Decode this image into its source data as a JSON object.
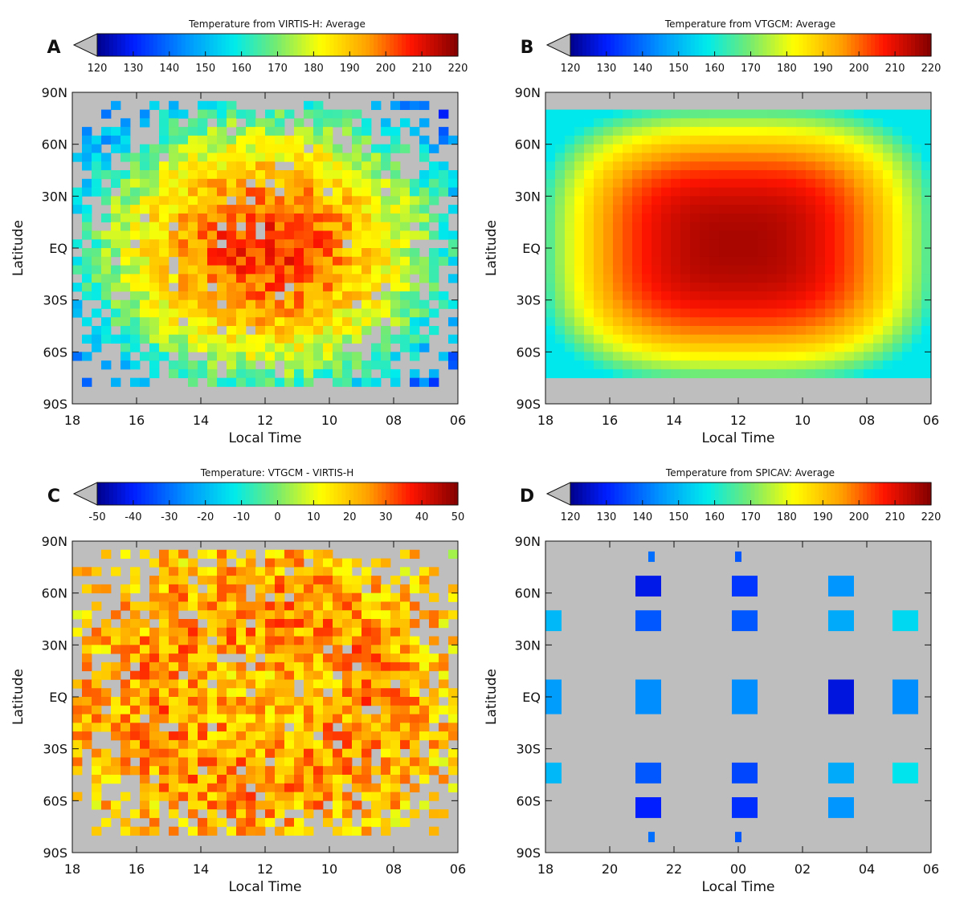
{
  "figure": {
    "panels": [
      {
        "letter": "A",
        "title": "Temperature from VIRTIS-H: Average",
        "xlabel": "Local Time",
        "ylabel": "Latitude",
        "colorbar_ticks": [
          "120",
          "130",
          "140",
          "150",
          "160",
          "170",
          "180",
          "190",
          "200",
          "210",
          "220"
        ],
        "x_ticks": [
          "18",
          "16",
          "14",
          "12",
          "10",
          "08",
          "06"
        ]
      },
      {
        "letter": "B",
        "title": "Temperature from VTGCM: Average",
        "xlabel": "Local Time",
        "ylabel": "Latitude",
        "colorbar_ticks": [
          "120",
          "130",
          "140",
          "150",
          "160",
          "170",
          "180",
          "190",
          "200",
          "210",
          "220"
        ],
        "x_ticks": [
          "18",
          "16",
          "14",
          "12",
          "10",
          "08",
          "06"
        ]
      },
      {
        "letter": "C",
        "title": "Temperature: VTGCM - VIRTIS-H",
        "xlabel": "Local Time",
        "ylabel": "Latitude",
        "colorbar_ticks": [
          "-50",
          "-40",
          "-30",
          "-20",
          "-10",
          "0",
          "10",
          "20",
          "30",
          "40",
          "50"
        ],
        "x_ticks": [
          "18",
          "16",
          "14",
          "12",
          "10",
          "08",
          "06"
        ]
      },
      {
        "letter": "D",
        "title": "Temperature from SPICAV: Average",
        "xlabel": "Local Time",
        "ylabel": "Latitude",
        "colorbar_ticks": [
          "120",
          "130",
          "140",
          "150",
          "160",
          "170",
          "180",
          "190",
          "200",
          "210",
          "220"
        ],
        "x_ticks": [
          "18",
          "20",
          "22",
          "00",
          "02",
          "04",
          "06"
        ]
      }
    ],
    "y_ticks": [
      "90N",
      "60N",
      "30N",
      "EQ",
      "30S",
      "60S",
      "90S"
    ]
  },
  "chart_data": [
    {
      "type": "heatmap",
      "panel": "A",
      "title": "Temperature from VIRTIS-H: Average",
      "xlabel": "Local Time",
      "ylabel": "Latitude",
      "x_range_hours": [
        18,
        6
      ],
      "y_range_deg": [
        90,
        -90
      ],
      "colorbar_range": [
        120,
        220
      ],
      "colormap": "rainbow",
      "missing_color": "#bebebe",
      "description_values": {
        "max_near_noon_equator": 205,
        "min_high_latitude_terminator": 140
      }
    },
    {
      "type": "heatmap",
      "panel": "B",
      "title": "Temperature from VTGCM: Average",
      "xlabel": "Local Time",
      "ylabel": "Latitude",
      "x_range_hours": [
        18,
        6
      ],
      "y_range_deg": [
        90,
        -90
      ],
      "colorbar_range": [
        120,
        220
      ],
      "colormap": "rainbow",
      "missing_color": "#bebebe",
      "lat_extent_deg": [
        -75,
        80
      ],
      "description_values": {
        "peak_subsolar": 215,
        "edge": 165
      }
    },
    {
      "type": "heatmap",
      "panel": "C",
      "title": "Temperature: VTGCM - VIRTIS-H",
      "xlabel": "Local Time",
      "ylabel": "Latitude",
      "x_range_hours": [
        18,
        6
      ],
      "y_range_deg": [
        90,
        -90
      ],
      "colorbar_range": [
        -50,
        50
      ],
      "colormap": "rainbow",
      "missing_color": "#bebebe"
    },
    {
      "type": "heatmap",
      "panel": "D",
      "title": "Temperature from SPICAV: Average",
      "xlabel": "Local Time",
      "ylabel": "Latitude",
      "x_range_hours": [
        18,
        30
      ],
      "y_range_deg": [
        90,
        -90
      ],
      "colorbar_range": [
        120,
        220
      ],
      "colormap": "rainbow",
      "missing_color": "#bebebe",
      "blocks": [
        {
          "lt": [
            21.2,
            21.4
          ],
          "lat": [
            78,
            84
          ],
          "value": 140
        },
        {
          "lt": [
            20.8,
            21.6
          ],
          "lat": [
            58,
            70
          ],
          "value": 128
        },
        {
          "lt": [
            20.8,
            21.6
          ],
          "lat": [
            38,
            50
          ],
          "value": 137
        },
        {
          "lt": [
            20.8,
            21.6
          ],
          "lat": [
            -10,
            10
          ],
          "value": 144
        },
        {
          "lt": [
            20.8,
            21.6
          ],
          "lat": [
            -50,
            -38
          ],
          "value": 137
        },
        {
          "lt": [
            20.8,
            21.6
          ],
          "lat": [
            -70,
            -58
          ],
          "value": 130
        },
        {
          "lt": [
            21.2,
            21.4
          ],
          "lat": [
            -84,
            -78
          ],
          "value": 140
        },
        {
          "lt": [
            23.9,
            24.1
          ],
          "lat": [
            78,
            84
          ],
          "value": 137
        },
        {
          "lt": [
            23.8,
            24.6
          ],
          "lat": [
            58,
            70
          ],
          "value": 133
        },
        {
          "lt": [
            23.8,
            24.6
          ],
          "lat": [
            38,
            50
          ],
          "value": 137
        },
        {
          "lt": [
            23.8,
            24.6
          ],
          "lat": [
            -10,
            10
          ],
          "value": 144
        },
        {
          "lt": [
            23.8,
            24.6
          ],
          "lat": [
            -50,
            -38
          ],
          "value": 135
        },
        {
          "lt": [
            23.8,
            24.6
          ],
          "lat": [
            -70,
            -58
          ],
          "value": 132
        },
        {
          "lt": [
            23.9,
            24.1
          ],
          "lat": [
            -84,
            -78
          ],
          "value": 137
        },
        {
          "lt": [
            26.8,
            27.6
          ],
          "lat": [
            58,
            70
          ],
          "value": 145
        },
        {
          "lt": [
            26.8,
            27.6
          ],
          "lat": [
            38,
            50
          ],
          "value": 148
        },
        {
          "lt": [
            26.8,
            27.6
          ],
          "lat": [
            -10,
            10
          ],
          "value": 127
        },
        {
          "lt": [
            26.8,
            27.6
          ],
          "lat": [
            -50,
            -38
          ],
          "value": 148
        },
        {
          "lt": [
            26.8,
            27.6
          ],
          "lat": [
            -70,
            -58
          ],
          "value": 145
        },
        {
          "lt": [
            18.0,
            18.5
          ],
          "lat": [
            38,
            50
          ],
          "value": 150
        },
        {
          "lt": [
            18.0,
            18.5
          ],
          "lat": [
            -10,
            10
          ],
          "value": 146
        },
        {
          "lt": [
            18.0,
            18.5
          ],
          "lat": [
            -50,
            -38
          ],
          "value": 150
        },
        {
          "lt": [
            28.8,
            29.6
          ],
          "lat": [
            38,
            50
          ],
          "value": 155
        },
        {
          "lt": [
            28.8,
            29.6
          ],
          "lat": [
            -10,
            10
          ],
          "value": 144
        },
        {
          "lt": [
            28.8,
            29.6
          ],
          "lat": [
            -50,
            -38
          ],
          "value": 157
        }
      ]
    }
  ]
}
